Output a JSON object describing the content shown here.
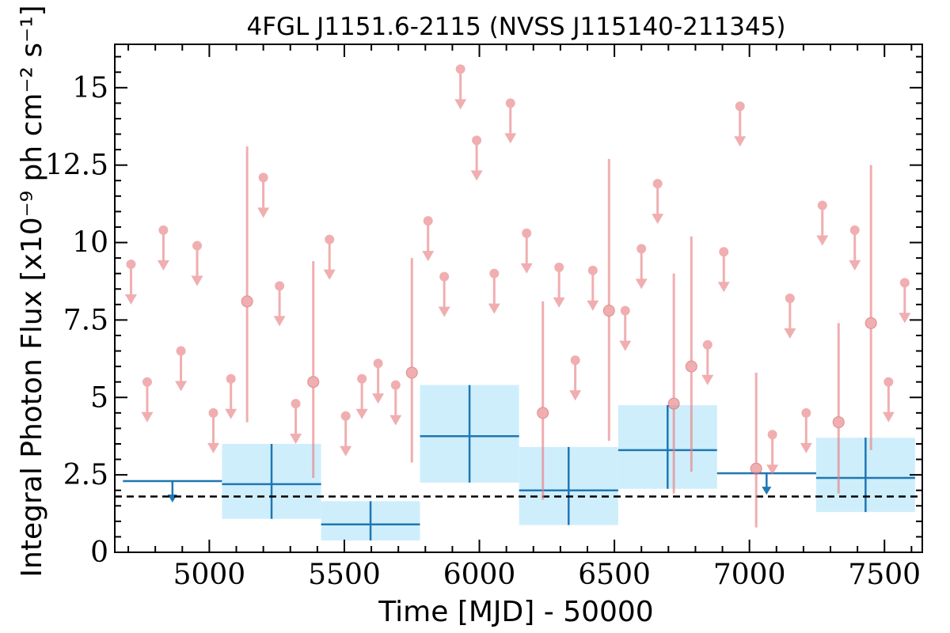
{
  "chart_data": {
    "type": "scatter",
    "title": "4FGL J1151.6-2115 (NVSS J115140-211345)",
    "xlabel": "Time [MJD] - 50000",
    "ylabel": "Integral Photon Flux [x10⁻⁹ ph cm⁻² s⁻¹]",
    "xlim": [
      4650,
      7640
    ],
    "ylim": [
      0,
      16.4
    ],
    "xticks": [
      5000,
      5500,
      6000,
      6500,
      7000,
      7500
    ],
    "xtick_labels": [
      "5000",
      "5500",
      "6000",
      "6500",
      "7000",
      "7500"
    ],
    "yticks": [
      0,
      2.5,
      5,
      7.5,
      10,
      12.5,
      15
    ],
    "ytick_labels": [
      "0",
      "2.5",
      "5",
      "7.5",
      "10",
      "12.5",
      "15"
    ],
    "grid": false,
    "colors": {
      "short_bins": "#e87e80",
      "long_bins": "#1f77b4",
      "long_bins_band": "#cfeefb",
      "reference_line": "#000000"
    },
    "reference_line": {
      "y": 1.8,
      "style": "dashed"
    },
    "long_bins": [
      {
        "x_start": 4680,
        "x_end": 5047,
        "y": 2.3,
        "upper_limit": true
      },
      {
        "x_start": 5047,
        "x_end": 5414,
        "y": 2.2,
        "y_low": 1.08,
        "y_high": 3.5
      },
      {
        "x_start": 5414,
        "x_end": 5780,
        "y": 0.9,
        "y_low": 0.38,
        "y_high": 1.65
      },
      {
        "x_start": 5780,
        "x_end": 6147,
        "y": 3.75,
        "y_low": 2.25,
        "y_high": 5.4
      },
      {
        "x_start": 6147,
        "x_end": 6514,
        "y": 2.0,
        "y_low": 0.88,
        "y_high": 3.4
      },
      {
        "x_start": 6514,
        "x_end": 6880,
        "y": 3.3,
        "y_low": 2.05,
        "y_high": 4.75
      },
      {
        "x_start": 6880,
        "x_end": 7247,
        "y": 2.55,
        "upper_limit": true
      },
      {
        "x_start": 7247,
        "x_end": 7613,
        "y": 2.4,
        "y_low": 1.3,
        "y_high": 3.7
      }
    ],
    "short_bins": [
      {
        "x": 4710,
        "y": 9.3,
        "upper_limit": true
      },
      {
        "x": 4770,
        "y": 5.5,
        "upper_limit": true
      },
      {
        "x": 4830,
        "y": 10.4,
        "upper_limit": true
      },
      {
        "x": 4895,
        "y": 6.5,
        "upper_limit": true
      },
      {
        "x": 4955,
        "y": 9.9,
        "upper_limit": true
      },
      {
        "x": 5015,
        "y": 4.5,
        "upper_limit": true
      },
      {
        "x": 5080,
        "y": 5.6,
        "upper_limit": true
      },
      {
        "x": 5140,
        "y": 8.1,
        "y_low": 4.2,
        "y_high": 13.1
      },
      {
        "x": 5200,
        "y": 12.1,
        "upper_limit": true
      },
      {
        "x": 5260,
        "y": 8.6,
        "upper_limit": true
      },
      {
        "x": 5320,
        "y": 4.8,
        "upper_limit": true
      },
      {
        "x": 5385,
        "y": 5.5,
        "y_low": 2.4,
        "y_high": 9.4
      },
      {
        "x": 5445,
        "y": 10.1,
        "upper_limit": true
      },
      {
        "x": 5505,
        "y": 4.4,
        "upper_limit": true
      },
      {
        "x": 5565,
        "y": 5.6,
        "upper_limit": true
      },
      {
        "x": 5625,
        "y": 6.1,
        "upper_limit": true
      },
      {
        "x": 5690,
        "y": 5.4,
        "upper_limit": true
      },
      {
        "x": 5750,
        "y": 5.8,
        "y_low": 2.9,
        "y_high": 9.5
      },
      {
        "x": 5810,
        "y": 10.7,
        "upper_limit": true
      },
      {
        "x": 5870,
        "y": 8.9,
        "upper_limit": true
      },
      {
        "x": 5930,
        "y": 15.6,
        "upper_limit": true
      },
      {
        "x": 5990,
        "y": 13.3,
        "upper_limit": true
      },
      {
        "x": 6055,
        "y": 9.0,
        "upper_limit": true
      },
      {
        "x": 6115,
        "y": 14.5,
        "upper_limit": true
      },
      {
        "x": 6175,
        "y": 10.3,
        "upper_limit": true
      },
      {
        "x": 6235,
        "y": 4.5,
        "y_low": 1.7,
        "y_high": 8.1
      },
      {
        "x": 6295,
        "y": 9.2,
        "upper_limit": true
      },
      {
        "x": 6355,
        "y": 6.2,
        "upper_limit": true
      },
      {
        "x": 6420,
        "y": 9.1,
        "upper_limit": true
      },
      {
        "x": 6480,
        "y": 7.8,
        "y_low": 3.6,
        "y_high": 12.7
      },
      {
        "x": 6540,
        "y": 7.8,
        "upper_limit": true
      },
      {
        "x": 6600,
        "y": 9.8,
        "upper_limit": true
      },
      {
        "x": 6660,
        "y": 11.9,
        "upper_limit": true
      },
      {
        "x": 6720,
        "y": 4.8,
        "y_low": 1.9,
        "y_high": 9.0
      },
      {
        "x": 6785,
        "y": 6.0,
        "y_low": 2.6,
        "y_high": 10.2
      },
      {
        "x": 6845,
        "y": 6.7,
        "upper_limit": true
      },
      {
        "x": 6905,
        "y": 9.7,
        "upper_limit": true
      },
      {
        "x": 6965,
        "y": 14.4,
        "upper_limit": true
      },
      {
        "x": 7025,
        "y": 2.7,
        "y_low": 0.8,
        "y_high": 5.8
      },
      {
        "x": 7085,
        "y": 3.8,
        "upper_limit": true
      },
      {
        "x": 7150,
        "y": 8.2,
        "upper_limit": true
      },
      {
        "x": 7210,
        "y": 4.5,
        "upper_limit": true
      },
      {
        "x": 7270,
        "y": 11.2,
        "upper_limit": true
      },
      {
        "x": 7330,
        "y": 4.2,
        "y_low": 1.9,
        "y_high": 7.4
      },
      {
        "x": 7390,
        "y": 10.4,
        "upper_limit": true
      },
      {
        "x": 7450,
        "y": 7.4,
        "y_low": 3.3,
        "y_high": 12.5
      },
      {
        "x": 7515,
        "y": 5.5,
        "upper_limit": true
      },
      {
        "x": 7575,
        "y": 8.7,
        "upper_limit": true
      }
    ]
  }
}
